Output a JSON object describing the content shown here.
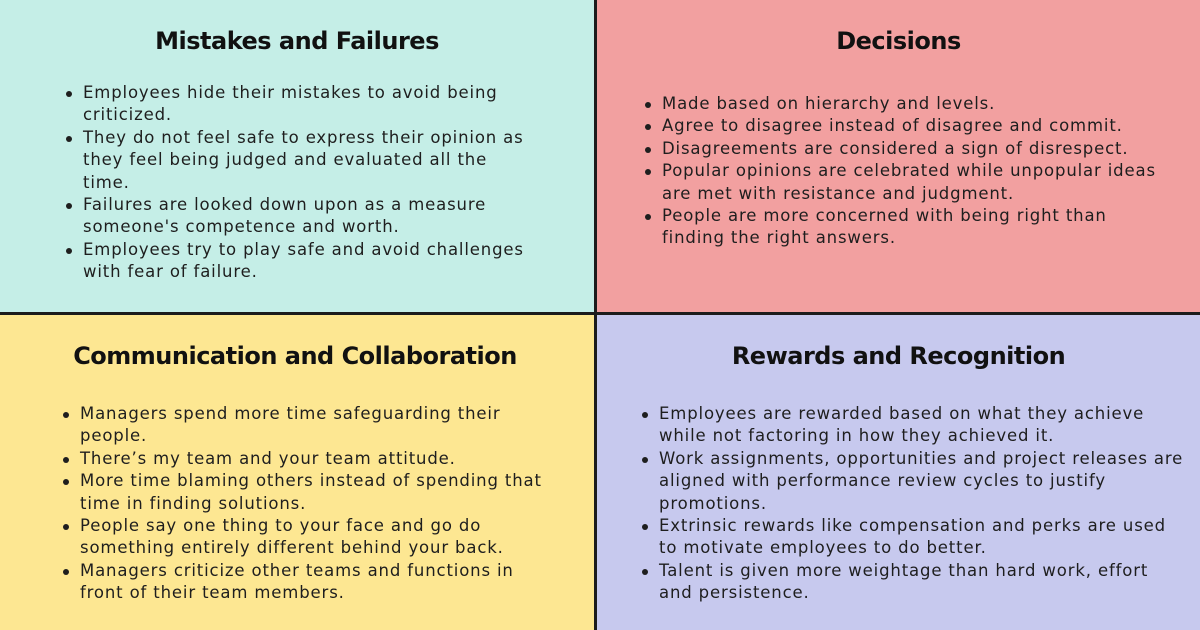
{
  "quadrants": {
    "mistakes": {
      "title": "Mistakes and Failures",
      "items": [
        "Employees hide their mistakes to avoid being criticized.",
        "They do not feel safe to express their opinion as they feel being judged and evaluated all the time.",
        "Failures are looked down upon as a measure someone's competence and worth.",
        "Employees try to play safe and avoid challenges with fear of failure."
      ]
    },
    "decisions": {
      "title": "Decisions",
      "items": [
        "Made based on hierarchy and levels.",
        "Agree to disagree instead of disagree and commit.",
        "Disagreements are considered a sign of disrespect.",
        "Popular opinions are celebrated while unpopular ideas are met with resistance and judgment.",
        "People are more concerned with being right than finding the right answers."
      ]
    },
    "communication": {
      "title": "Communication and Collaboration",
      "items": [
        "Managers spend more time safeguarding their people.",
        "There’s my team and your team attitude.",
        "More time blaming others instead of spending that time in finding solutions.",
        "People say one thing to your face and go do something entirely different behind your back.",
        "Managers criticize other teams and functions in front of their team members."
      ]
    },
    "rewards": {
      "title": "Rewards and Recognition",
      "items": [
        "Employees are rewarded based on what they achieve while not factoring in how they achieved it.",
        "Work assignments, opportunities and project releases are aligned with performance review cycles to justify promotions.",
        "Extrinsic rewards like compensation and perks are used to motivate employees to do better.",
        "Talent is given more weightage than hard work, effort and persistence."
      ]
    }
  }
}
